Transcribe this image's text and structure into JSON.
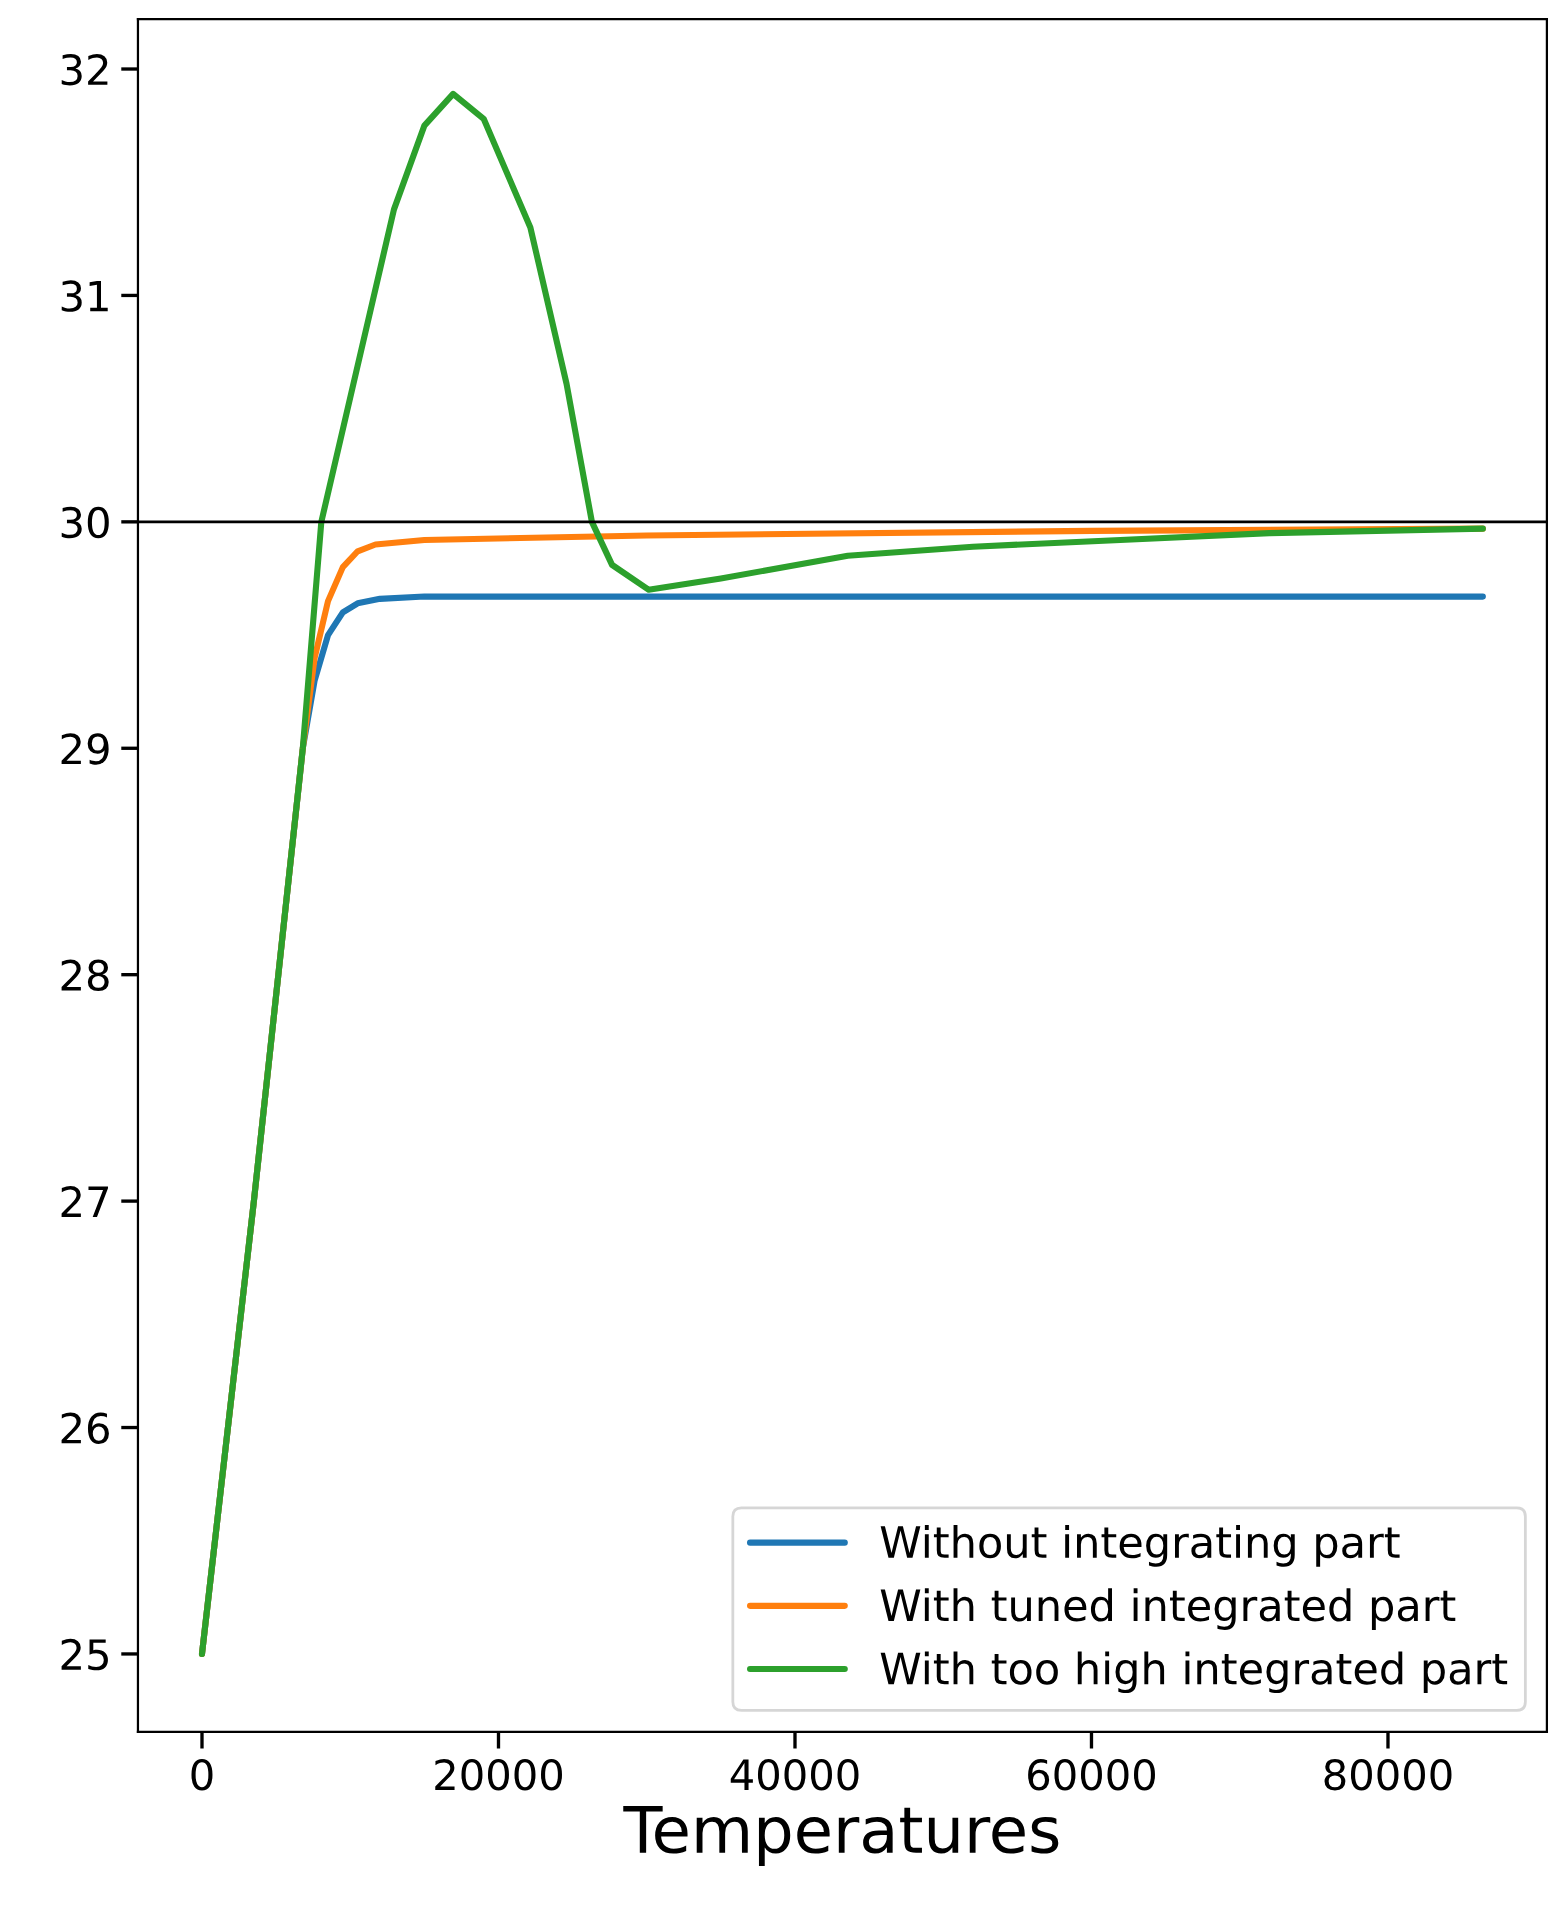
{
  "chart_data": {
    "type": "line",
    "xlabel": "Temperatures",
    "xlim": [
      -4320,
      90720
    ],
    "ylim": [
      24.656,
      32.22
    ],
    "xticks": [
      0,
      20000,
      40000,
      60000,
      80000
    ],
    "yticks": [
      25,
      26,
      27,
      28,
      29,
      30,
      31,
      32
    ],
    "grid": false,
    "legend": "bottom right",
    "line_style": "solid",
    "marker": "none",
    "ref_lines": [
      {
        "axis": "y",
        "value": 30,
        "color": "#000000"
      }
    ],
    "series": [
      {
        "name": "Without integrating part",
        "color": "#1f77b4",
        "x": [
          0,
          3500,
          6800,
          7600,
          8500,
          9500,
          10500,
          12000,
          15000,
          30000,
          60000,
          86400
        ],
        "values": [
          25,
          27,
          29,
          29.3,
          29.5,
          29.6,
          29.64,
          29.66,
          29.67,
          29.67,
          29.67,
          29.67
        ]
      },
      {
        "name": "With tuned integrated part",
        "color": "#ff7f0e",
        "x": [
          0,
          3500,
          6800,
          7600,
          8500,
          9500,
          10500,
          11700,
          15000,
          30000,
          60000,
          86400
        ],
        "values": [
          25,
          27,
          29,
          29.4,
          29.65,
          29.8,
          29.87,
          29.9,
          29.92,
          29.94,
          29.96,
          29.97
        ]
      },
      {
        "name": "With too high integrated part",
        "color": "#2ca02c",
        "x": [
          0,
          3500,
          6800,
          8050,
          10500,
          12950,
          15000,
          16940,
          19000,
          22150,
          24590,
          26300,
          27660,
          30130,
          35000,
          43560,
          52000,
          61950,
          72000,
          86400
        ],
        "values": [
          25,
          27,
          29,
          30,
          30.69,
          31.38,
          31.75,
          31.89,
          31.78,
          31.3,
          30.61,
          30,
          29.81,
          29.7,
          29.75,
          29.85,
          29.89,
          29.92,
          29.95,
          29.97
        ]
      }
    ]
  }
}
